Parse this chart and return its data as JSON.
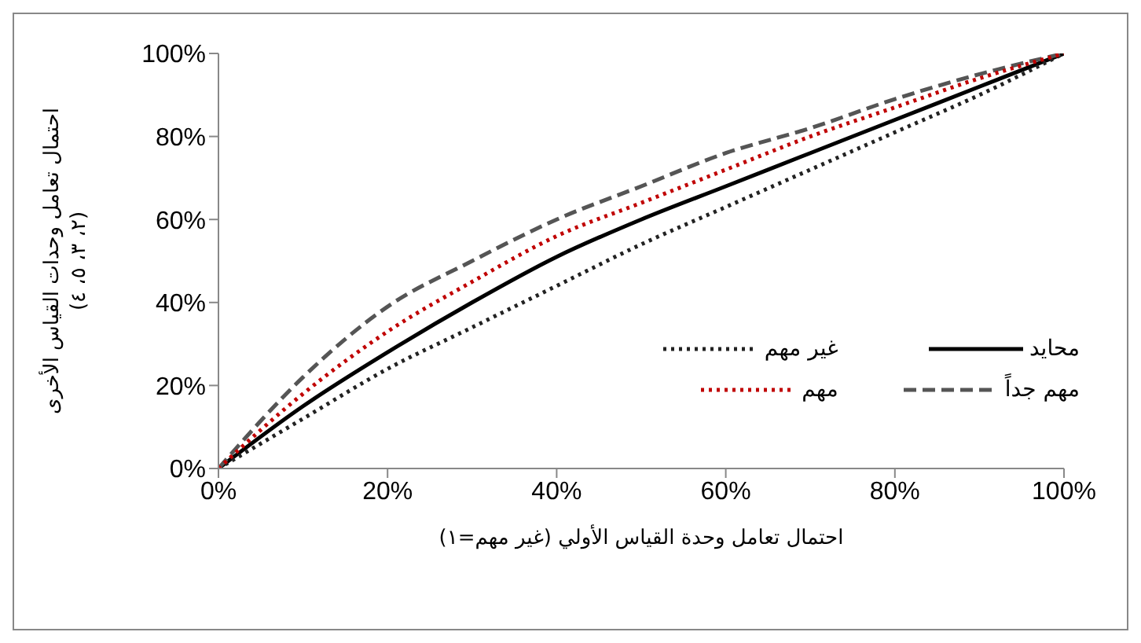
{
  "chart_data": {
    "type": "line",
    "xlabel": "احتمال تعامل وحدة القياس الأولي (غير مهم=١)",
    "ylabel": "احتمال تعامل وحدات القياس الأخرى\n(٢، ٣، ٥، ٤)",
    "x": [
      0,
      10,
      20,
      30,
      40,
      50,
      60,
      70,
      80,
      90,
      100
    ],
    "xlim": [
      0,
      100
    ],
    "ylim": [
      0,
      100
    ],
    "xticks": [
      {
        "value": 0,
        "label": "0%"
      },
      {
        "value": 20,
        "label": "20%"
      },
      {
        "value": 40,
        "label": "40%"
      },
      {
        "value": 60,
        "label": "60%"
      },
      {
        "value": 80,
        "label": "80%"
      },
      {
        "value": 100,
        "label": "100%"
      }
    ],
    "yticks": [
      {
        "value": 0,
        "label": "0%"
      },
      {
        "value": 20,
        "label": "20%"
      },
      {
        "value": 40,
        "label": "40%"
      },
      {
        "value": 60,
        "label": "60%"
      },
      {
        "value": 80,
        "label": "80%"
      },
      {
        "value": 100,
        "label": "100%"
      }
    ],
    "grid": false,
    "legend": "bottom right",
    "marker": "none",
    "series": [
      {
        "name": "محايد",
        "color": "#000000",
        "line_style": "solid",
        "values": [
          0,
          15,
          28,
          40,
          51,
          60,
          68,
          76,
          84,
          92,
          100
        ]
      },
      {
        "name": "غير مهم",
        "color": "#222222",
        "line_style": "dotted",
        "values": [
          0,
          12,
          24,
          34,
          44,
          54,
          63,
          72,
          81,
          90,
          100
        ]
      },
      {
        "name": "مهم جداً",
        "color": "#555555",
        "line_style": "dashed",
        "values": [
          0,
          22,
          39,
          50,
          60,
          68,
          76,
          82,
          89,
          95,
          100
        ]
      },
      {
        "name": "مهم",
        "color": "#c00000",
        "line_style": "dotted",
        "values": [
          0,
          18,
          33,
          45,
          56,
          64,
          72,
          80,
          87,
          94,
          100
        ]
      }
    ]
  }
}
